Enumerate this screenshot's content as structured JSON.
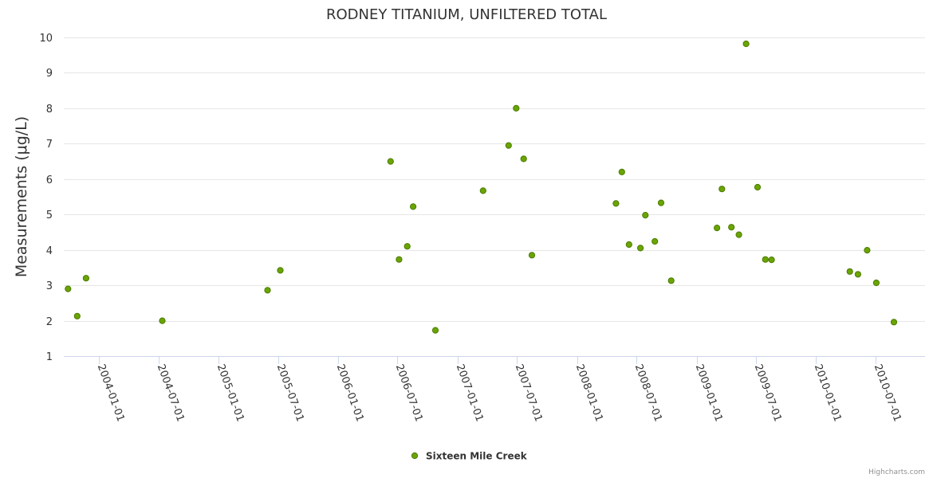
{
  "chart_data": {
    "type": "scatter",
    "title": "RODNEY TITANIUM, UNFILTERED TOTAL",
    "ylabel": "Measurements (μg/L)",
    "xlabel": "",
    "ylim": [
      1,
      10
    ],
    "yticks": [
      1,
      2,
      3,
      4,
      5,
      6,
      7,
      8,
      9,
      10
    ],
    "xlim": [
      "2003-09-15",
      "2010-11-30"
    ],
    "xticks": [
      "2004-01-01",
      "2004-07-01",
      "2005-01-01",
      "2005-07-01",
      "2006-01-01",
      "2006-07-01",
      "2007-01-01",
      "2007-07-01",
      "2008-01-01",
      "2008-07-01",
      "2009-01-01",
      "2009-07-01",
      "2010-01-01",
      "2010-07-01"
    ],
    "grid": true,
    "legend_position": "bottom-center",
    "series": [
      {
        "name": "Sixteen Mile Creek",
        "color": "#6aa500",
        "points": [
          {
            "x": "2003-09-28",
            "y": 2.9
          },
          {
            "x": "2003-10-26",
            "y": 2.13
          },
          {
            "x": "2003-11-22",
            "y": 3.2
          },
          {
            "x": "2004-07-12",
            "y": 2.0
          },
          {
            "x": "2005-05-30",
            "y": 2.86
          },
          {
            "x": "2005-07-08",
            "y": 3.42
          },
          {
            "x": "2006-06-10",
            "y": 6.5
          },
          {
            "x": "2006-07-06",
            "y": 3.73
          },
          {
            "x": "2006-07-31",
            "y": 4.1
          },
          {
            "x": "2006-08-18",
            "y": 5.22
          },
          {
            "x": "2006-10-25",
            "y": 1.73
          },
          {
            "x": "2007-03-20",
            "y": 5.67
          },
          {
            "x": "2007-06-06",
            "y": 6.95
          },
          {
            "x": "2007-06-29",
            "y": 8.0
          },
          {
            "x": "2007-07-22",
            "y": 6.57
          },
          {
            "x": "2007-08-16",
            "y": 3.85
          },
          {
            "x": "2008-04-29",
            "y": 5.31
          },
          {
            "x": "2008-05-17",
            "y": 6.2
          },
          {
            "x": "2008-06-08",
            "y": 4.15
          },
          {
            "x": "2008-07-13",
            "y": 4.05
          },
          {
            "x": "2008-07-28",
            "y": 4.98
          },
          {
            "x": "2008-08-26",
            "y": 4.24
          },
          {
            "x": "2008-09-14",
            "y": 5.33
          },
          {
            "x": "2008-10-15",
            "y": 3.13
          },
          {
            "x": "2009-03-04",
            "y": 4.62
          },
          {
            "x": "2009-03-19",
            "y": 5.72
          },
          {
            "x": "2009-04-17",
            "y": 4.64
          },
          {
            "x": "2009-05-10",
            "y": 4.43
          },
          {
            "x": "2009-06-01",
            "y": 9.82
          },
          {
            "x": "2009-07-06",
            "y": 5.77
          },
          {
            "x": "2009-07-30",
            "y": 3.73
          },
          {
            "x": "2009-08-18",
            "y": 3.72
          },
          {
            "x": "2010-04-14",
            "y": 3.39
          },
          {
            "x": "2010-05-09",
            "y": 3.31
          },
          {
            "x": "2010-06-06",
            "y": 3.99
          },
          {
            "x": "2010-07-04",
            "y": 3.07
          },
          {
            "x": "2010-08-27",
            "y": 1.96
          }
        ]
      }
    ]
  },
  "legend": {
    "label": "Sixteen Mile Creek"
  },
  "credit": "Highcharts.com"
}
